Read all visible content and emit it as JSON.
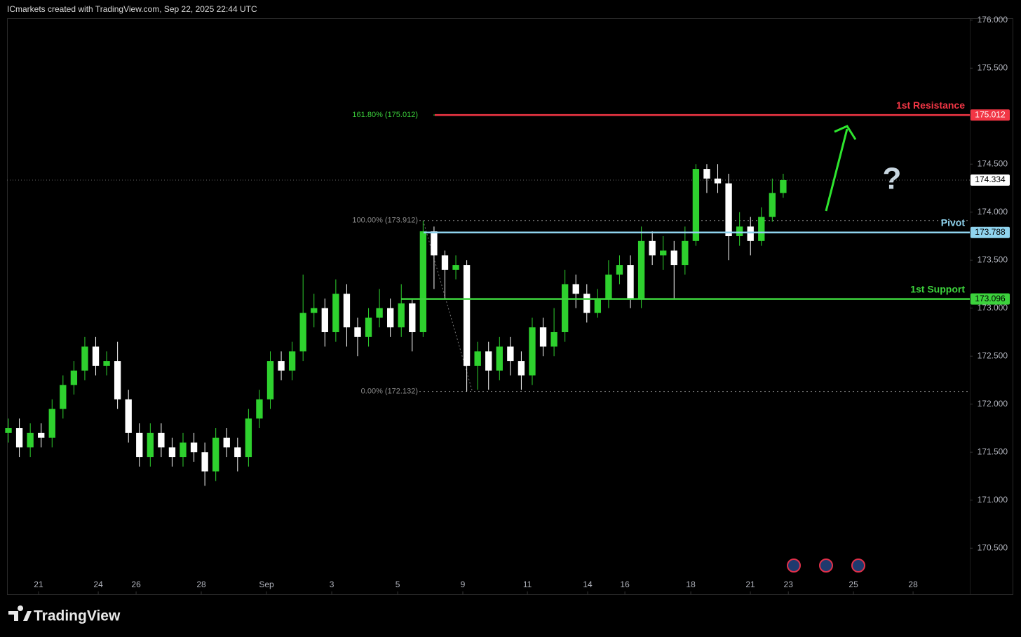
{
  "header": "ICmarkets created with TradingView.com, Sep 22, 2025 22:44 UTC",
  "brand": "TradingView",
  "chart_data": {
    "type": "candlestick",
    "up_color": "#2ed12e",
    "down_color": "#ffffff",
    "open": [
      171.7,
      171.75,
      171.55,
      171.7,
      171.65,
      171.95,
      172.2,
      172.35,
      172.6,
      172.4,
      172.45,
      172.05,
      171.7,
      171.45,
      171.7,
      171.55,
      171.45,
      171.6,
      171.5,
      171.3,
      171.65,
      171.55,
      171.45,
      171.85,
      172.05,
      172.45,
      172.35,
      172.55,
      172.95,
      173.0,
      172.75,
      173.15,
      172.8,
      172.7,
      172.9,
      173.0,
      172.8,
      173.05,
      172.75,
      173.8,
      173.55,
      173.4,
      173.45,
      172.4,
      172.55,
      172.35,
      172.6,
      172.45,
      172.3,
      172.8,
      172.6,
      172.75,
      173.25,
      173.15,
      172.95,
      173.1,
      173.35,
      173.45,
      173.1,
      173.7,
      173.55,
      173.6,
      173.45,
      173.7,
      174.45,
      174.35,
      174.3,
      173.75,
      173.85,
      173.7,
      173.95,
      174.2
    ],
    "high": [
      171.85,
      171.85,
      171.8,
      171.8,
      172.05,
      172.3,
      172.45,
      172.7,
      172.7,
      172.55,
      172.65,
      172.15,
      171.8,
      171.8,
      171.8,
      171.65,
      171.7,
      171.7,
      171.6,
      171.75,
      171.75,
      171.65,
      171.95,
      172.15,
      172.55,
      172.55,
      172.65,
      173.35,
      173.15,
      173.1,
      173.3,
      173.25,
      172.9,
      173.0,
      173.2,
      173.1,
      173.25,
      173.1,
      173.91,
      173.85,
      173.6,
      173.55,
      173.5,
      172.65,
      172.65,
      172.7,
      172.7,
      172.55,
      172.9,
      172.9,
      173.0,
      173.4,
      173.35,
      173.25,
      173.2,
      173.5,
      173.55,
      173.55,
      173.85,
      173.8,
      173.75,
      173.7,
      173.85,
      174.5,
      174.5,
      174.5,
      174.4,
      174.0,
      173.95,
      174.05,
      174.35,
      174.4
    ],
    "low": [
      171.6,
      171.45,
      171.45,
      171.55,
      171.55,
      171.85,
      172.1,
      172.25,
      172.3,
      172.3,
      171.95,
      171.6,
      171.35,
      171.35,
      171.45,
      171.35,
      171.35,
      171.4,
      171.15,
      171.2,
      171.45,
      171.3,
      171.35,
      171.75,
      171.95,
      172.25,
      172.25,
      172.45,
      172.8,
      172.6,
      172.65,
      172.6,
      172.5,
      172.6,
      172.8,
      172.7,
      172.7,
      172.55,
      172.7,
      173.2,
      173.1,
      173.3,
      172.132,
      172.15,
      172.15,
      172.25,
      172.3,
      172.15,
      172.2,
      172.5,
      172.5,
      172.65,
      173.0,
      172.85,
      172.9,
      173.0,
      173.25,
      173.0,
      173.0,
      173.45,
      173.4,
      173.1,
      173.35,
      173.65,
      174.2,
      174.2,
      173.5,
      173.65,
      173.55,
      173.65,
      173.9,
      174.15
    ],
    "close": [
      171.75,
      171.55,
      171.7,
      171.65,
      171.95,
      172.2,
      172.35,
      172.6,
      172.4,
      172.45,
      172.05,
      171.7,
      171.45,
      171.7,
      171.55,
      171.45,
      171.6,
      171.5,
      171.3,
      171.65,
      171.55,
      171.45,
      171.85,
      172.05,
      172.45,
      172.35,
      172.55,
      172.95,
      173.0,
      172.75,
      173.15,
      172.8,
      172.7,
      172.9,
      173.0,
      172.8,
      173.05,
      172.75,
      173.8,
      173.55,
      173.4,
      173.45,
      172.4,
      172.55,
      172.35,
      172.6,
      172.45,
      172.3,
      172.8,
      172.6,
      172.75,
      173.25,
      173.15,
      172.95,
      173.1,
      173.35,
      173.45,
      173.1,
      173.7,
      173.55,
      173.6,
      173.45,
      173.7,
      174.45,
      174.35,
      174.3,
      173.75,
      173.85,
      173.7,
      173.95,
      174.2,
      174.334
    ],
    "xlim": [
      -0.13,
      88.1
    ],
    "xticks": [
      {
        "value": 2.76,
        "label": "21"
      },
      {
        "value": 8.23,
        "label": "24"
      },
      {
        "value": 11.7,
        "label": "26"
      },
      {
        "value": 17.67,
        "label": "28"
      },
      {
        "value": 23.65,
        "label": "Sep"
      },
      {
        "value": 29.63,
        "label": "3"
      },
      {
        "value": 35.67,
        "label": "5"
      },
      {
        "value": 41.64,
        "label": "9"
      },
      {
        "value": 47.56,
        "label": "11"
      },
      {
        "value": 53.08,
        "label": "14"
      },
      {
        "value": 56.49,
        "label": "16"
      },
      {
        "value": 62.53,
        "label": "18"
      },
      {
        "value": 67.99,
        "label": "21"
      },
      {
        "value": 71.47,
        "label": "23"
      },
      {
        "value": 77.44,
        "label": "25"
      },
      {
        "value": 82.9,
        "label": "28"
      }
    ],
    "ylim": [
      170.02,
      176.02
    ],
    "yticks": [
      {
        "value": 170.5,
        "label": "170.500"
      },
      {
        "value": 171,
        "label": "171.000"
      },
      {
        "value": 171.5,
        "label": "171.500"
      },
      {
        "value": 172,
        "label": "172.000"
      },
      {
        "value": 172.5,
        "label": "172.500"
      },
      {
        "value": 173,
        "label": "173.000"
      },
      {
        "value": 173.5,
        "label": "173.500"
      },
      {
        "value": 174,
        "label": "174.000"
      },
      {
        "value": 174.5,
        "label": "174.500"
      },
      {
        "value": 175,
        "label": "175.000"
      },
      {
        "value": 175.5,
        "label": "175.500"
      },
      {
        "value": 176,
        "label": "176.000"
      }
    ],
    "levels": [
      {
        "name": "1st Resistance",
        "value": 175.012,
        "color": "#f23645"
      },
      {
        "name": "Pivot",
        "value": 173.788,
        "color": "#8fd3ee"
      },
      {
        "name": "1st Support",
        "value": 173.096,
        "color": "#3cd23c"
      }
    ],
    "fib": [
      {
        "label": "161.80% (175.012)",
        "value": 175.012,
        "color": "#3cd23c"
      },
      {
        "label": "100.00% (173.912)",
        "value": 173.912,
        "color": "#8a8a8a"
      },
      {
        "label": "0.00% (172.132)",
        "value": 172.132,
        "color": "#8a8a8a"
      }
    ],
    "last_price": 174.334,
    "annotation": "?"
  }
}
